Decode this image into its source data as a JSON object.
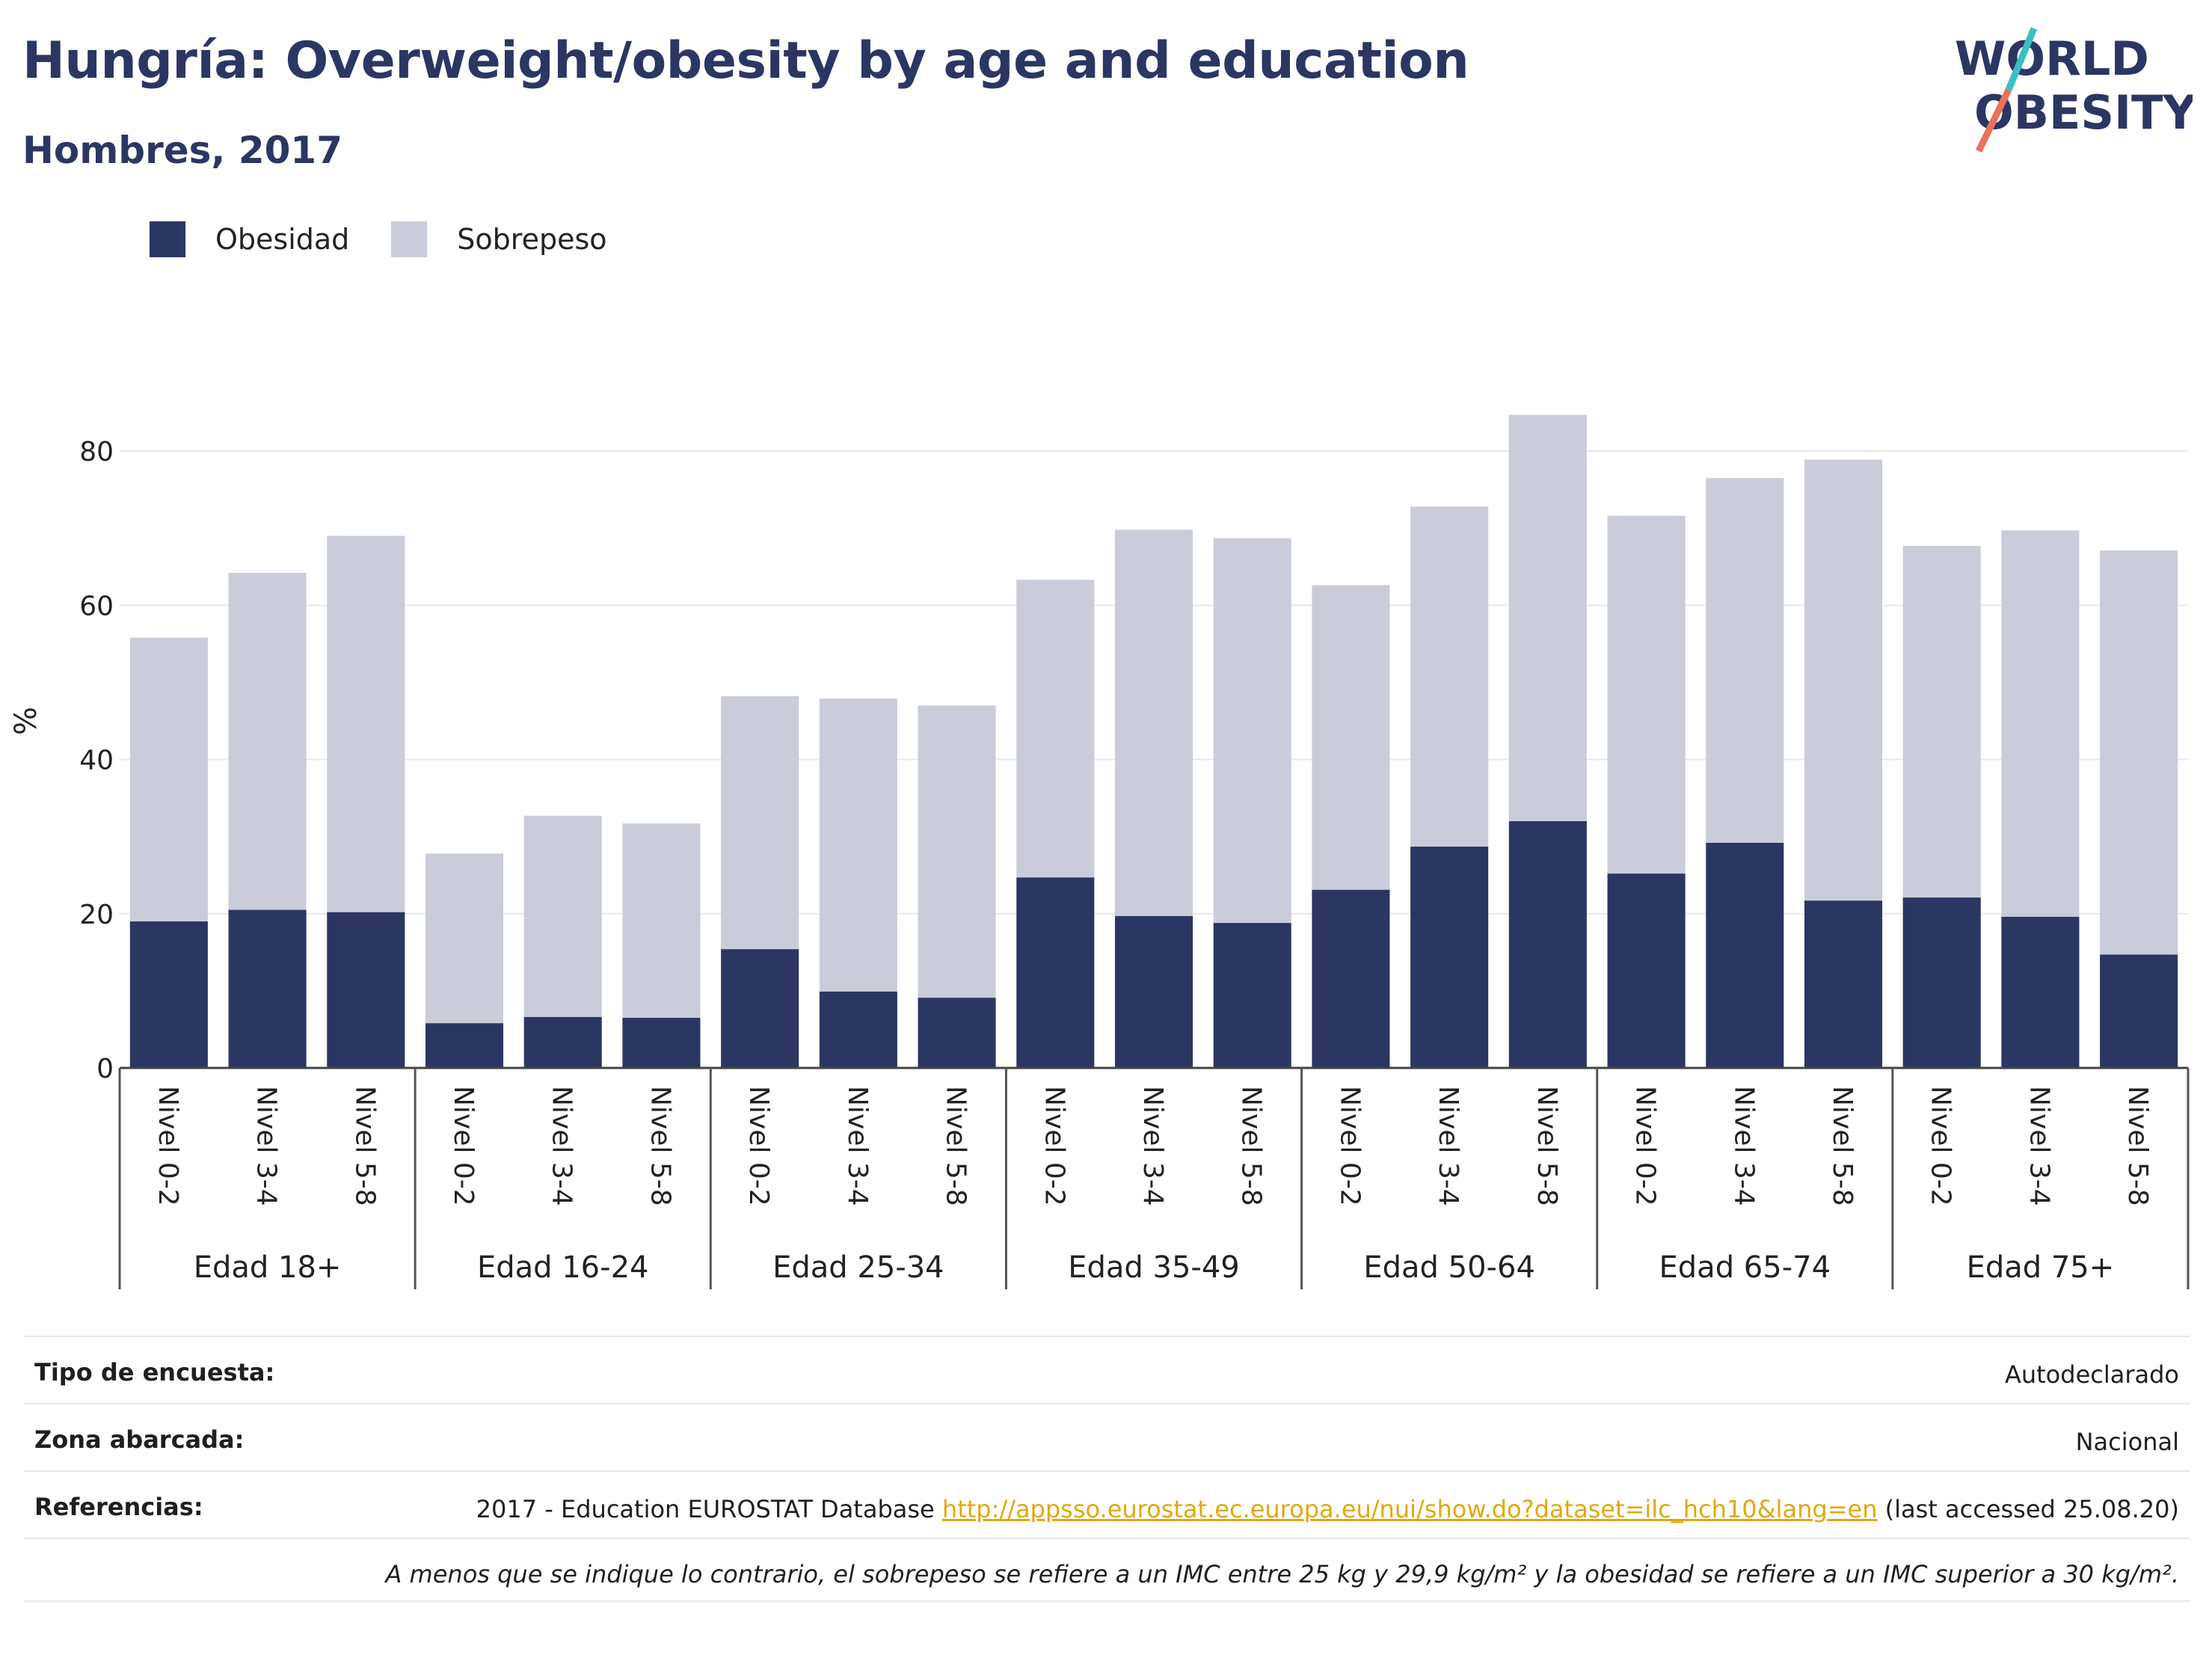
{
  "header": {
    "title": "Hungría: Overweight/obesity by age and education",
    "subtitle": "Hombres, 2017"
  },
  "logo": {
    "line1": "WORLD",
    "line2": "OBESITY"
  },
  "colors": {
    "obesity": "#2b3663",
    "overweight": "#cacdd9",
    "title": "#2b3663",
    "link": "#e2a80c",
    "logo_teal": "#3bbfc4",
    "logo_coral": "#e8735c"
  },
  "chart_data": {
    "type": "bar",
    "stacked": true,
    "ylabel": "%",
    "ylim": [
      0,
      90
    ],
    "yticks": [
      0,
      20,
      40,
      60,
      80
    ],
    "grid": true,
    "legend_position": "top-left",
    "groups": [
      {
        "name": "Edad 18+",
        "categories": [
          "Nivel 0-2",
          "Nivel 3-4",
          "Nivel 5-8"
        ]
      },
      {
        "name": "Edad 16-24",
        "categories": [
          "Nivel 0-2",
          "Nivel 3-4",
          "Nivel 5-8"
        ]
      },
      {
        "name": "Edad 25-34",
        "categories": [
          "Nivel 0-2",
          "Nivel 3-4",
          "Nivel 5-8"
        ]
      },
      {
        "name": "Edad 35-49",
        "categories": [
          "Nivel 0-2",
          "Nivel 3-4",
          "Nivel 5-8"
        ]
      },
      {
        "name": "Edad 50-64",
        "categories": [
          "Nivel 0-2",
          "Nivel 3-4",
          "Nivel 5-8"
        ]
      },
      {
        "name": "Edad 65-74",
        "categories": [
          "Nivel 0-2",
          "Nivel 3-4",
          "Nivel 5-8"
        ]
      },
      {
        "name": "Edad 75+",
        "categories": [
          "Nivel 0-2",
          "Nivel 3-4",
          "Nivel 5-8"
        ]
      }
    ],
    "series": [
      {
        "name": "Obesidad",
        "values": [
          19.0,
          20.5,
          20.2,
          5.8,
          6.6,
          6.5,
          15.4,
          9.9,
          9.1,
          24.7,
          19.7,
          18.8,
          23.1,
          28.7,
          32.0,
          25.2,
          29.2,
          21.7,
          22.1,
          19.6,
          14.7
        ]
      },
      {
        "name": "Sobrepeso",
        "values": [
          36.8,
          43.7,
          48.8,
          22.0,
          26.1,
          25.2,
          32.8,
          38.0,
          37.9,
          38.6,
          50.1,
          49.9,
          39.5,
          44.1,
          52.7,
          46.4,
          47.3,
          57.2,
          45.6,
          50.1,
          52.4
        ]
      }
    ]
  },
  "footer": {
    "rows": [
      {
        "label": "Tipo de encuesta:",
        "value": "Autodeclarado"
      },
      {
        "label": "Zona abarcada:",
        "value": "Nacional"
      },
      {
        "label": "Referencias:",
        "value_pre": "2017 - Education EUROSTAT Database ",
        "link": "http://appsso.eurostat.ec.europa.eu/nui/show.do?dataset=ilc_hch10&lang=en",
        "value_post": " (last accessed 25.08.20)"
      }
    ],
    "note": "A menos que se indique lo contrario, el sobrepeso se refiere a un IMC entre 25 kg y 29,9 kg/m² y la obesidad se refiere a un IMC superior a 30 kg/m²."
  }
}
